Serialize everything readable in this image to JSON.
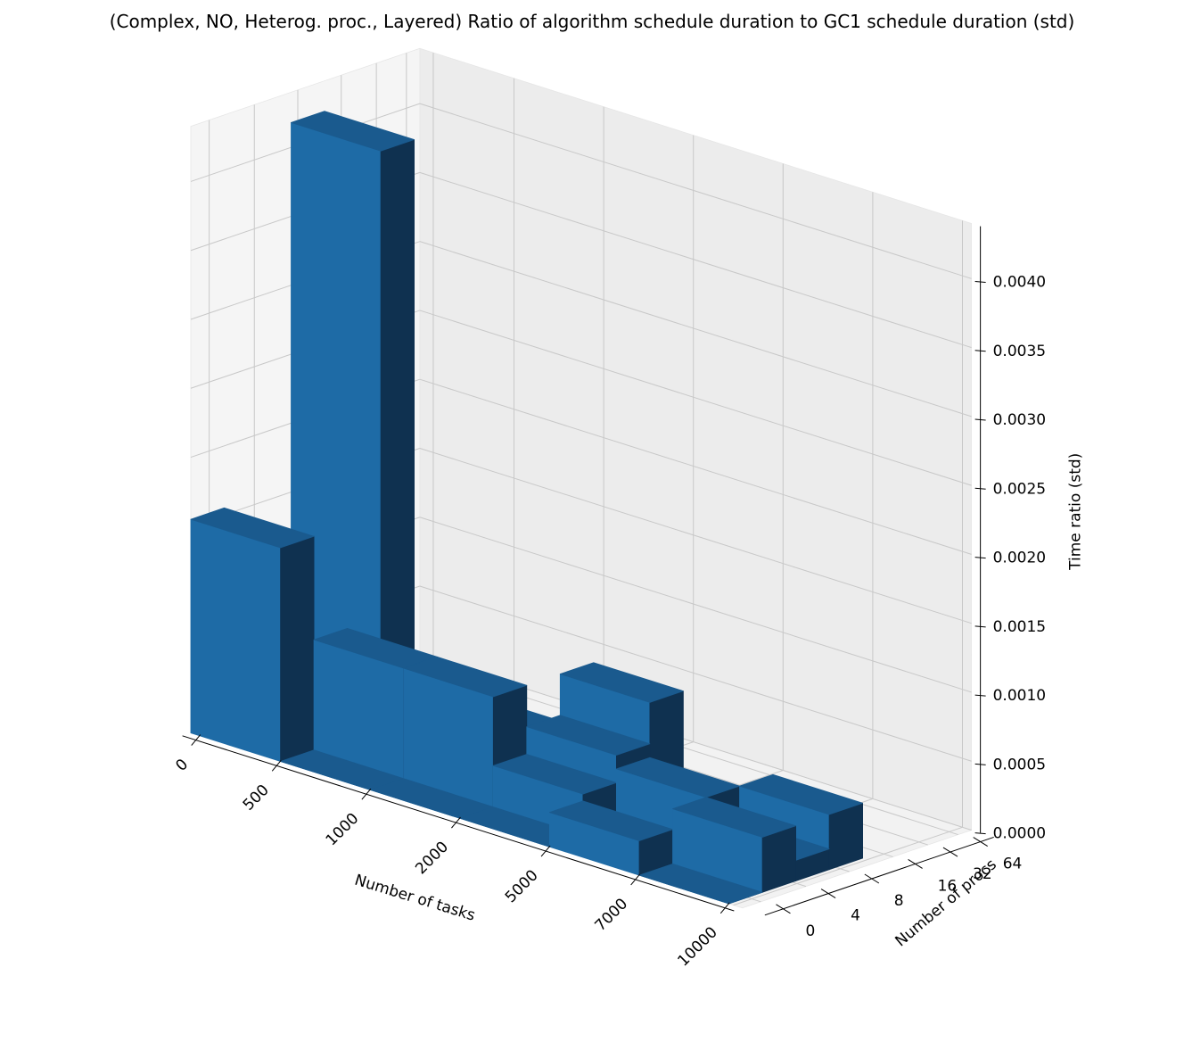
{
  "chart_data": {
    "type": "bar3d",
    "title": "(Complex, NO, Heterog. proc., Layered) Ratio of algorithm schedule duration to GC1 schedule duration (std)",
    "xlabel": "Number of tasks",
    "ylabel": "Number of procs",
    "zlabel": "Time ratio (std)",
    "x_ticks": [
      "0",
      "500",
      "1000",
      "2000",
      "5000",
      "7000",
      "10000"
    ],
    "y_ticks": [
      "0",
      "4",
      "8",
      "16",
      "32",
      "64"
    ],
    "z_ticks": [
      "0.0000",
      "0.0005",
      "0.0010",
      "0.0015",
      "0.0020",
      "0.0025",
      "0.0030",
      "0.0035",
      "0.0040"
    ],
    "zlim": [
      0,
      0.0044
    ],
    "grid": true,
    "bar_color": "#1f77b4",
    "bars": [
      {
        "tasks": "500",
        "procs": "4",
        "value": 0.00155
      },
      {
        "tasks": "500",
        "procs": "8",
        "value": 0.0
      },
      {
        "tasks": "500",
        "procs": "16",
        "value": 0.0
      },
      {
        "tasks": "500",
        "procs": "32",
        "value": 0.00418
      },
      {
        "tasks": "1000",
        "procs": "4",
        "value": 0.0
      },
      {
        "tasks": "1000",
        "procs": "8",
        "value": 0.0008
      },
      {
        "tasks": "1000",
        "procs": "16",
        "value": 0.0
      },
      {
        "tasks": "1000",
        "procs": "32",
        "value": 0.0
      },
      {
        "tasks": "2000",
        "procs": "4",
        "value": 0.0
      },
      {
        "tasks": "2000",
        "procs": "8",
        "value": 0.0008
      },
      {
        "tasks": "2000",
        "procs": "16",
        "value": 0.0
      },
      {
        "tasks": "2000",
        "procs": "32",
        "value": 0.0003
      },
      {
        "tasks": "5000",
        "procs": "4",
        "value": 0.0
      },
      {
        "tasks": "5000",
        "procs": "8",
        "value": 0.0003
      },
      {
        "tasks": "5000",
        "procs": "16",
        "value": 0.0005
      },
      {
        "tasks": "5000",
        "procs": "32",
        "value": 0.0008
      },
      {
        "tasks": "7000",
        "procs": "4",
        "value": 0.00025
      },
      {
        "tasks": "7000",
        "procs": "8",
        "value": 0.0
      },
      {
        "tasks": "7000",
        "procs": "16",
        "value": 0.0004
      },
      {
        "tasks": "7000",
        "procs": "32",
        "value": 0.0002
      },
      {
        "tasks": "10000",
        "procs": "4",
        "value": 0.0
      },
      {
        "tasks": "10000",
        "procs": "8",
        "value": 0.0004
      },
      {
        "tasks": "10000",
        "procs": "16",
        "value": 0.00015
      },
      {
        "tasks": "10000",
        "procs": "32",
        "value": 0.0004
      }
    ]
  }
}
